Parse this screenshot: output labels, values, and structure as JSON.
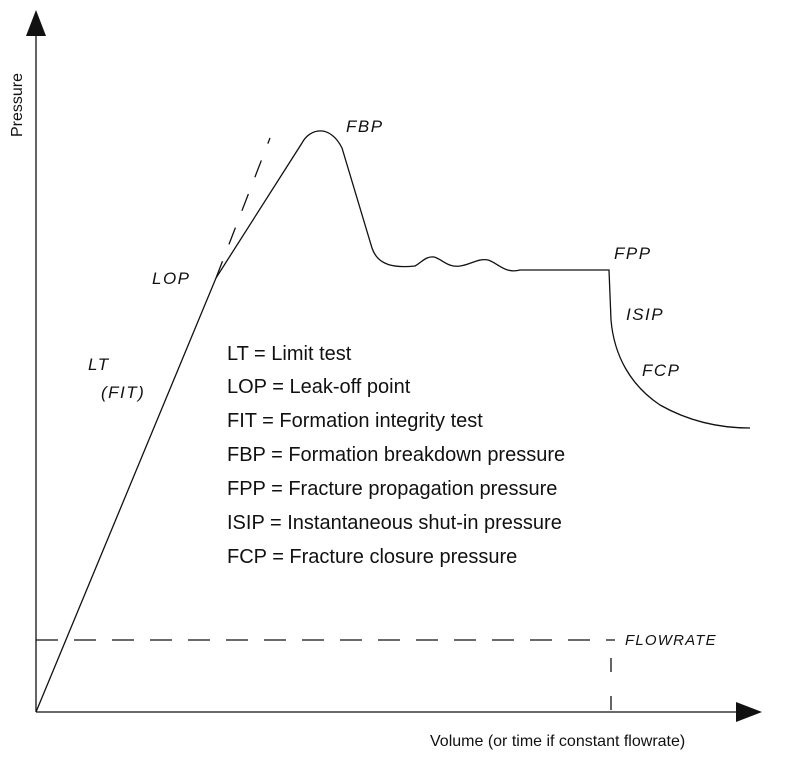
{
  "axes": {
    "y_label": "Pressure",
    "x_label": "Volume (or time if constant flowrate)"
  },
  "curve_labels": {
    "lt": "LT",
    "fit": "(FIT)",
    "lop": "LOP",
    "fbp": "FBP",
    "fpp": "FPP",
    "isip": "ISIP",
    "fcp": "FCP",
    "flowrate": "FLOWRATE"
  },
  "legend": [
    "LT = Limit test",
    "LOP = Leak-off point",
    "FIT = Formation integrity test",
    "FBP = Formation breakdown pressure",
    "FPP = Fracture propagation pressure",
    "ISIP = Instantaneous shut-in pressure",
    "FCP = Fracture closure pressure"
  ]
}
